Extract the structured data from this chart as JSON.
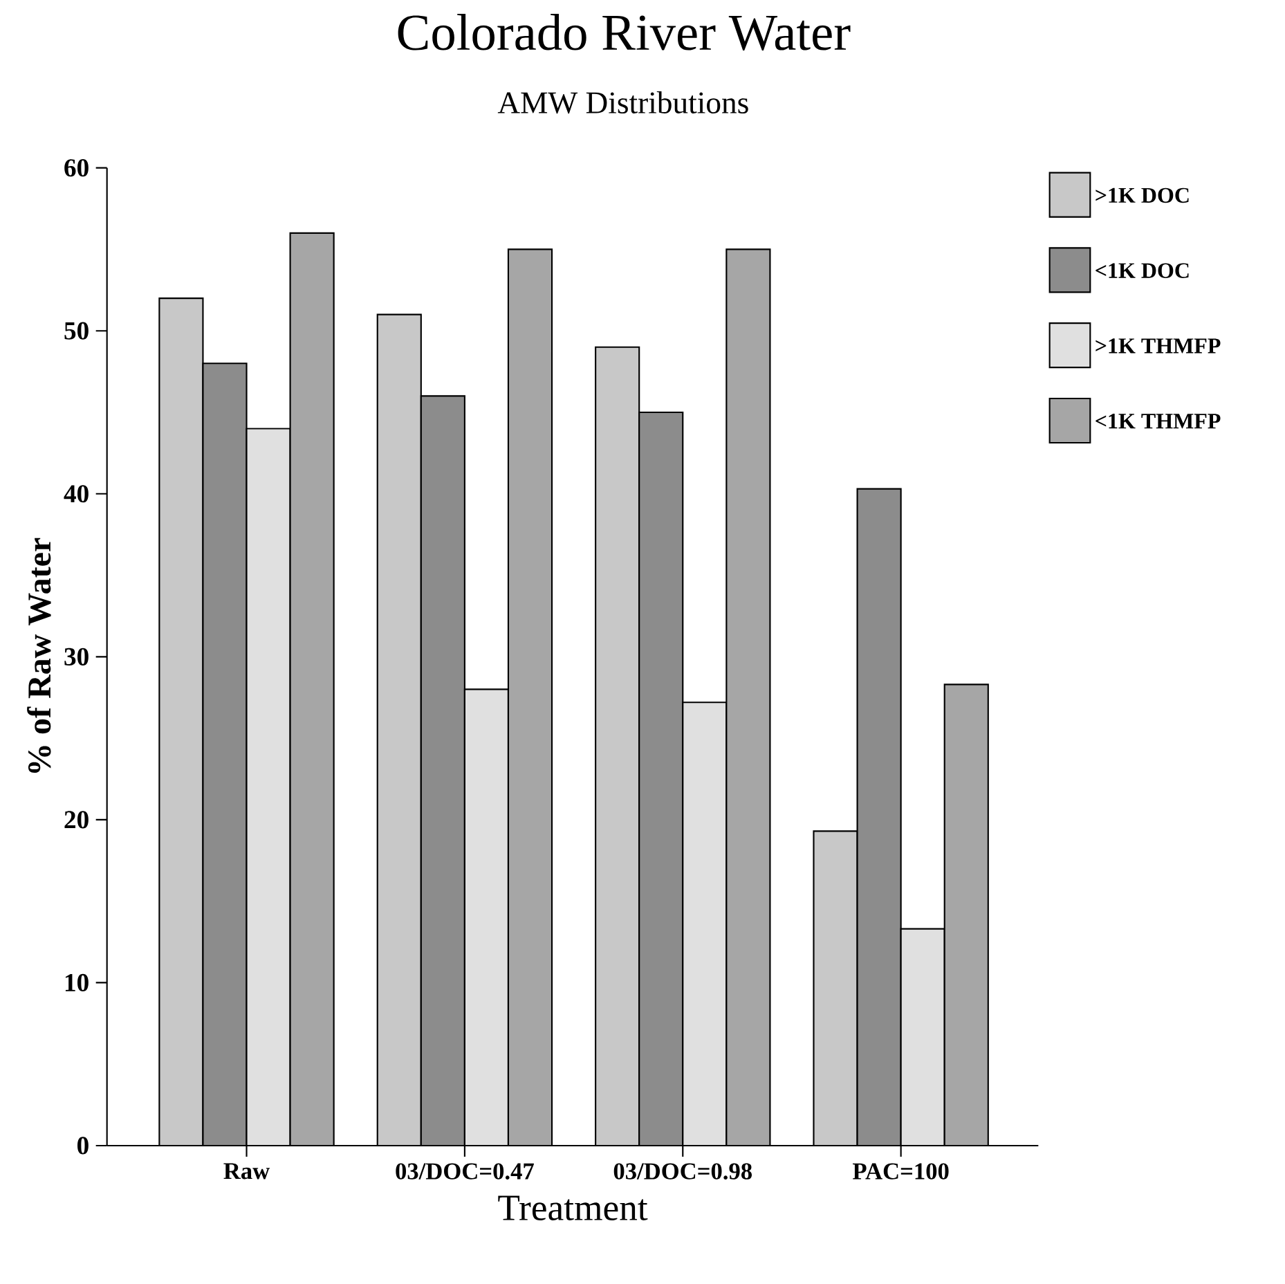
{
  "chart_data": {
    "type": "bar",
    "title": "Colorado River Water",
    "subtitle": "AMW Distributions",
    "xlabel": "Treatment",
    "ylabel": "% of Raw Water",
    "categories": [
      "Raw",
      "03/DOC=0.47",
      "03/DOC=0.98",
      "PAC=100"
    ],
    "series": [
      {
        "name": ">1K DOC",
        "color": "#c8c8c8",
        "values": [
          52,
          51,
          49,
          19.3
        ]
      },
      {
        "name": "<1K DOC",
        "color": "#8c8c8c",
        "values": [
          48,
          46,
          45,
          40.3
        ]
      },
      {
        "name": ">1K THMFP",
        "color": "#e0e0e0",
        "values": [
          44,
          28,
          27.2,
          13.3
        ]
      },
      {
        "name": "<1K THMFP",
        "color": "#a6a6a6",
        "values": [
          56,
          55,
          55,
          28.3
        ]
      }
    ],
    "ylim": [
      0,
      60
    ],
    "yticks": [
      0,
      10,
      20,
      30,
      40,
      50,
      60
    ],
    "grid": false,
    "legend": "top right"
  }
}
